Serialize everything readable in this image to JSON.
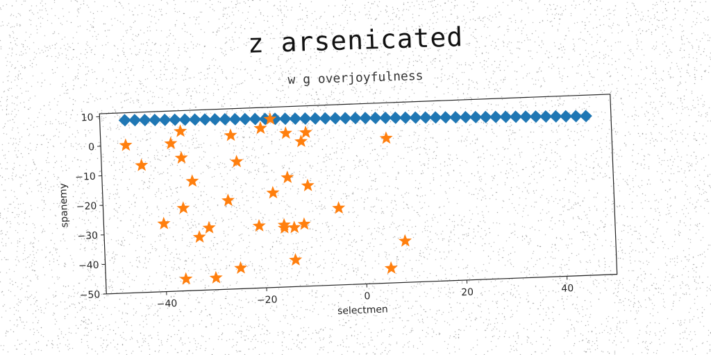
{
  "chart_data": {
    "type": "scatter",
    "title": "z arsenicated",
    "subtitle": "w g overjoyfulness",
    "xlabel": "selectmen",
    "ylabel": "spanemy",
    "xlim": [
      -52,
      50
    ],
    "ylim": [
      -50,
      11
    ],
    "xticks": [
      -40,
      -20,
      0,
      20,
      40
    ],
    "yticks": [
      10,
      0,
      -10,
      -20,
      -30,
      -40,
      -50
    ],
    "xtick_labels": [
      "−40",
      "−20",
      "0",
      "20",
      "40"
    ],
    "ytick_labels": [
      "10",
      "0",
      "−10",
      "−20",
      "−30",
      "−40",
      "−50"
    ],
    "grid": false,
    "colors": {
      "diamond_series": "#1f77b4",
      "star_series": "#ff7f0e"
    },
    "series": [
      {
        "marker": "diamond",
        "x": [
          -47.0,
          -45.0,
          -43.0,
          -41.0,
          -39.0,
          -37.0,
          -35.0,
          -33.0,
          -31.0,
          -29.0,
          -27.0,
          -25.0,
          -23.0,
          -21.0,
          -19.0,
          -17.0,
          -15.0,
          -13.0,
          -11.0,
          -9.0,
          -7.0,
          -5.0,
          -3.0,
          -1.0,
          1.0,
          3.0,
          5.0,
          7.0,
          9.0,
          11.0,
          13.0,
          15.0,
          17.0,
          19.0,
          21.0,
          23.0,
          25.0,
          27.0,
          29.0,
          31.0,
          33.0,
          35.0,
          37.0,
          39.0,
          41.0,
          43.0,
          45.0
        ],
        "y": [
          8.5,
          8.4,
          8.3,
          8.2,
          8.1,
          8.0,
          7.9,
          7.8,
          7.7,
          7.6,
          7.5,
          7.4,
          7.3,
          7.2,
          7.1,
          7.0,
          6.9,
          6.8,
          6.7,
          6.6,
          6.5,
          6.4,
          6.3,
          6.2,
          6.1,
          6.0,
          5.9,
          5.8,
          5.7,
          5.6,
          5.5,
          5.4,
          5.3,
          5.2,
          5.1,
          5.0,
          4.9,
          4.8,
          4.7,
          4.6,
          4.5,
          4.4,
          4.3,
          4.2,
          4.1,
          4.0,
          3.9
        ]
      },
      {
        "marker": "star",
        "x": [
          -47,
          -44,
          -38,
          -36,
          -36,
          -34,
          -36,
          -40,
          -33,
          -31,
          -36,
          -30,
          -25,
          -26,
          -27,
          -21,
          -25,
          -20,
          -18,
          -16,
          -18,
          -15,
          -15,
          -14,
          -14,
          -12,
          -12,
          -11,
          -11,
          -5,
          5,
          8,
          5,
          -20,
          -16
        ],
        "y": [
          0,
          -7,
          0,
          4,
          -5,
          -13,
          -22,
          -27,
          -32,
          -29,
          -46,
          -46,
          -43,
          2,
          -20,
          -29,
          -7,
          4,
          7,
          -30,
          -18,
          -13,
          2,
          -30,
          -41,
          -1,
          -29,
          -16,
          2,
          -24,
          -1,
          -36,
          -45,
          4,
          -29
        ]
      }
    ]
  }
}
